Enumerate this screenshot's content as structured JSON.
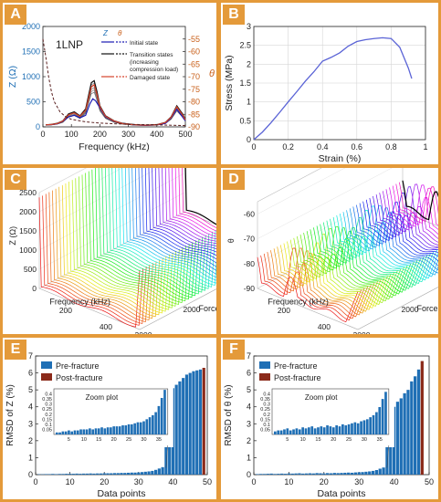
{
  "panels": {
    "a": {
      "tag": "A"
    },
    "b": {
      "tag": "B"
    },
    "c": {
      "tag": "C"
    },
    "d": {
      "tag": "D"
    },
    "e": {
      "tag": "E"
    },
    "f": {
      "tag": "F"
    }
  },
  "colors": {
    "frame": "#e49a3a",
    "z_axis_blue": "#1f6fb5",
    "theta_axis_orange": "#c9601b",
    "initial_state": "#1b1bb3",
    "transition_state": "#111111",
    "damaged_state": "#d6422b",
    "stress_curve": "#5a63d6",
    "pre_fracture": "#1f6fb5",
    "post_fracture": "#8b2a1a"
  },
  "chart_data": [
    {
      "id": "A",
      "type": "line",
      "annotation": "1LNP",
      "xlabel": "Frequency (kHz)",
      "ylabel": "Z (Ω)",
      "ylabel_right": "θ",
      "xlim": [
        0,
        500
      ],
      "xticks": [
        0,
        100,
        200,
        300,
        400,
        500
      ],
      "ylim": [
        0,
        2000
      ],
      "yticks": [
        0,
        500,
        1000,
        1500,
        2000
      ],
      "ylim_right": [
        -90,
        -50
      ],
      "yticks_right": [
        -55,
        -60,
        -65,
        -70,
        -75,
        -80,
        -85,
        -90
      ],
      "legend_symbols": [
        "Z",
        "θ"
      ],
      "legend": [
        "Initial state",
        "Transition states (increasing compression load)",
        "Damaged state"
      ],
      "legend_placement": "top-right",
      "series": [
        {
          "name": "Initial state",
          "x": [
            10,
            30,
            50,
            70,
            90,
            110,
            130,
            150,
            165,
            175,
            185,
            200,
            220,
            250,
            280,
            320,
            360,
            400,
            430,
            450,
            470,
            490,
            500
          ],
          "y": [
            40,
            45,
            60,
            110,
            200,
            230,
            180,
            230,
            460,
            560,
            520,
            380,
            200,
            110,
            70,
            40,
            30,
            40,
            70,
            180,
            350,
            200,
            120
          ]
        },
        {
          "name": "Transition states (increasing compression load)",
          "x": [
            10,
            30,
            50,
            70,
            90,
            110,
            130,
            150,
            160,
            170,
            180,
            190,
            200,
            220,
            250,
            280,
            320,
            360,
            400,
            430,
            450,
            470,
            490,
            500
          ],
          "y": [
            40,
            50,
            70,
            120,
            260,
            300,
            220,
            360,
            620,
            880,
            920,
            700,
            420,
            220,
            120,
            70,
            45,
            35,
            45,
            90,
            200,
            420,
            260,
            150
          ]
        },
        {
          "name": "Damaged state",
          "x": [
            10,
            30,
            50,
            70,
            90,
            110,
            130,
            150,
            160,
            170,
            180,
            190,
            200,
            220,
            250,
            280,
            320,
            360,
            400,
            430,
            450,
            470,
            490,
            500
          ],
          "y": [
            40,
            48,
            65,
            115,
            240,
            280,
            210,
            330,
            560,
            800,
            840,
            640,
            400,
            210,
            115,
            65,
            42,
            33,
            42,
            85,
            190,
            400,
            240,
            140
          ]
        },
        {
          "name": "θ envelope",
          "axis": "right",
          "x": [
            0,
            10,
            20,
            30,
            40,
            60,
            80,
            100,
            150,
            200,
            300,
            400,
            500
          ],
          "y": [
            -55,
            -62,
            -70,
            -76,
            -80,
            -84,
            -86,
            -87,
            -88,
            -88.5,
            -89,
            -89.2,
            -89.5
          ]
        }
      ]
    },
    {
      "id": "B",
      "type": "line",
      "xlabel": "Strain (%)",
      "ylabel": "Stress (MPa)",
      "xlim": [
        0,
        1
      ],
      "xticks": [
        0,
        0.2,
        0.4,
        0.6,
        0.8,
        1
      ],
      "ylim": [
        0,
        3
      ],
      "yticks": [
        0,
        0.5,
        1,
        1.5,
        2,
        2.5,
        3
      ],
      "grid": true,
      "series": [
        {
          "x": [
            0,
            0.05,
            0.1,
            0.15,
            0.2,
            0.25,
            0.3,
            0.35,
            0.4,
            0.45,
            0.5,
            0.55,
            0.6,
            0.65,
            0.7,
            0.75,
            0.8,
            0.85,
            0.9,
            0.92
          ],
          "y": [
            0,
            0.2,
            0.45,
            0.72,
            1.0,
            1.27,
            1.55,
            1.8,
            2.08,
            2.18,
            2.3,
            2.48,
            2.6,
            2.65,
            2.68,
            2.7,
            2.68,
            2.45,
            1.9,
            1.62
          ]
        }
      ]
    },
    {
      "id": "C",
      "type": "line",
      "projection": "3d",
      "xlabel": "Frequency (kHz)",
      "ylabel": "Force (N)",
      "zlabel": "Z (Ω)",
      "freq_ticks": [
        200,
        400
      ],
      "force_ticks": [
        0,
        1000,
        2000,
        3000
      ],
      "z_ticks": [
        0,
        500,
        1000,
        1500,
        2000,
        2500
      ],
      "zlim": [
        0,
        2500
      ],
      "curve_count": 45
    },
    {
      "id": "D",
      "type": "line",
      "projection": "3d",
      "xlabel": "Frequency (kHz)",
      "ylabel": "Force (N)",
      "zlabel": "θ",
      "freq_ticks": [
        200,
        400
      ],
      "force_ticks": [
        0,
        1000,
        2000,
        3000
      ],
      "z_ticks": [
        -60,
        -70,
        -80,
        -90
      ],
      "zlim": [
        -90,
        -55
      ],
      "curve_count": 45
    },
    {
      "id": "E",
      "type": "bar",
      "xlabel": "Data points",
      "ylabel": "RMSD of Z (%)",
      "xlim": [
        0,
        50
      ],
      "xticks": [
        0,
        10,
        20,
        30,
        40,
        50
      ],
      "ylim": [
        0,
        7
      ],
      "yticks": [
        0,
        1,
        2,
        3,
        4,
        5,
        6,
        7
      ],
      "legend": [
        "Pre-fracture",
        "Post-fracture"
      ],
      "legend_placement": "top-left",
      "values": [
        0.02,
        0.02,
        0.03,
        0.03,
        0.04,
        0.03,
        0.04,
        0.04,
        0.05,
        0.05,
        0.05,
        0.06,
        0.05,
        0.06,
        0.06,
        0.07,
        0.06,
        0.07,
        0.07,
        0.08,
        0.08,
        0.08,
        0.09,
        0.09,
        0.1,
        0.1,
        0.11,
        0.12,
        0.12,
        0.13,
        0.15,
        0.17,
        0.19,
        0.22,
        0.28,
        0.36,
        0.44,
        2.9,
        4.6,
        5.1,
        5.3,
        5.5,
        5.7,
        5.9,
        6.0,
        6.1,
        6.15,
        6.2
      ],
      "post_fracture_value": 6.3,
      "inset": {
        "title": "Zoom plot",
        "xticks": [
          5,
          10,
          15,
          20,
          25,
          30,
          35
        ],
        "yticks": [
          0.05,
          0.1,
          0.15,
          0.2,
          0.25,
          0.3,
          0.35,
          0.4
        ],
        "ylim": [
          0,
          0.45
        ],
        "count": 37
      }
    },
    {
      "id": "F",
      "type": "bar",
      "xlabel": "Data points",
      "ylabel": "RMSD of θ (%)",
      "xlim": [
        0,
        50
      ],
      "xticks": [
        0,
        10,
        20,
        30,
        40,
        50
      ],
      "ylim": [
        0,
        7
      ],
      "yticks": [
        0,
        1,
        2,
        3,
        4,
        5,
        6,
        7
      ],
      "legend": [
        "Pre-fracture",
        "Post-fracture"
      ],
      "legend_placement": "top-left",
      "values": [
        0.03,
        0.04,
        0.04,
        0.05,
        0.06,
        0.04,
        0.05,
        0.06,
        0.05,
        0.07,
        0.06,
        0.07,
        0.08,
        0.06,
        0.07,
        0.08,
        0.07,
        0.09,
        0.08,
        0.07,
        0.09,
        0.08,
        0.1,
        0.09,
        0.1,
        0.11,
        0.12,
        0.11,
        0.13,
        0.14,
        0.15,
        0.17,
        0.19,
        0.22,
        0.27,
        0.35,
        0.42,
        2.7,
        3.8,
        4.0,
        4.3,
        4.5,
        4.8,
        5.0,
        5.5,
        5.8,
        6.2
      ],
      "post_fracture_value": 6.7,
      "inset": {
        "title": "Zoom plot",
        "xticks": [
          5,
          10,
          15,
          20,
          25,
          30,
          35
        ],
        "yticks": [
          0.05,
          0.1,
          0.15,
          0.2,
          0.25,
          0.3,
          0.35,
          0.4
        ],
        "ylim": [
          0,
          0.45
        ],
        "count": 37
      }
    }
  ]
}
